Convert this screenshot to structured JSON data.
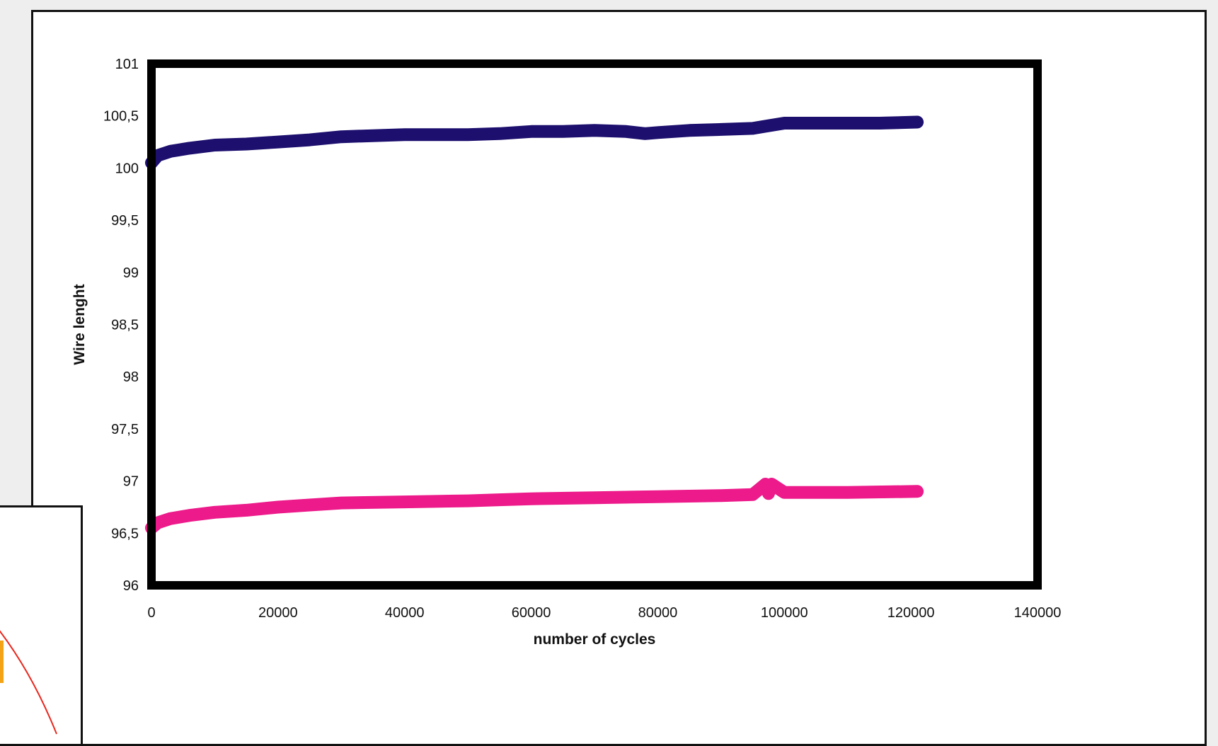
{
  "chart_data": {
    "type": "line",
    "title": "",
    "xlabel": "number of cycles",
    "ylabel": "Wire lenght",
    "xlim": [
      0,
      140000
    ],
    "ylim": [
      96,
      101
    ],
    "x_ticks": [
      "0",
      "20000",
      "40000",
      "60000",
      "80000",
      "100000",
      "120000",
      "140000"
    ],
    "y_ticks": [
      "96",
      "96,5",
      "97",
      "97,5",
      "98",
      "98,5",
      "99",
      "99,5",
      "100",
      "100,5",
      "101"
    ],
    "grid": false,
    "legend": "none",
    "series": [
      {
        "color": "#1c0f6e",
        "x": [
          0,
          1000,
          3000,
          6000,
          10000,
          15000,
          20000,
          25000,
          30000,
          40000,
          45000,
          50000,
          55000,
          60000,
          65000,
          70000,
          75000,
          78000,
          80000,
          85000,
          90000,
          95000,
          97000,
          100000,
          105000,
          110000,
          115000,
          121000
        ],
        "y": [
          100.05,
          100.12,
          100.16,
          100.19,
          100.22,
          100.23,
          100.25,
          100.27,
          100.3,
          100.32,
          100.32,
          100.32,
          100.33,
          100.35,
          100.35,
          100.36,
          100.35,
          100.33,
          100.34,
          100.36,
          100.37,
          100.38,
          100.4,
          100.43,
          100.43,
          100.43,
          100.43,
          100.44
        ]
      },
      {
        "color": "#ec1a8a",
        "x": [
          0,
          1000,
          3000,
          6000,
          10000,
          15000,
          20000,
          25000,
          30000,
          40000,
          50000,
          55000,
          60000,
          70000,
          80000,
          90000,
          95000,
          97000,
          97500,
          98000,
          100000,
          110000,
          121000
        ],
        "y": [
          96.55,
          96.6,
          96.64,
          96.67,
          96.7,
          96.72,
          96.75,
          96.77,
          96.79,
          96.8,
          96.81,
          96.82,
          96.83,
          96.84,
          96.85,
          96.86,
          96.87,
          96.97,
          96.88,
          96.97,
          96.89,
          96.89,
          96.9
        ]
      }
    ]
  },
  "inset": {
    "stroke_color": "#e8281e",
    "accent_color": "#f5a316"
  }
}
